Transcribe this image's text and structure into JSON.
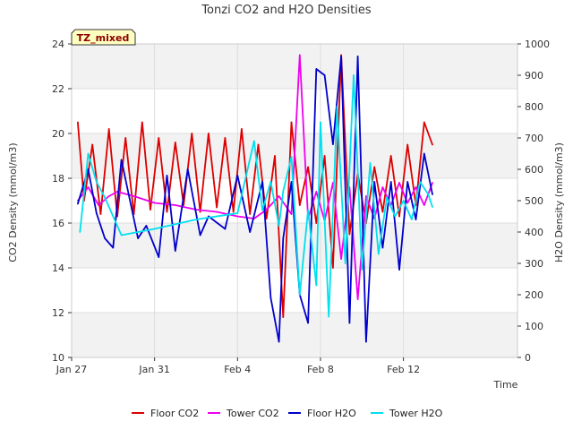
{
  "chart_data": {
    "type": "line",
    "title": "Tonzi CO2 and H2O Densities",
    "badge": "TZ_mixed",
    "xlabel": "Time",
    "ylabel_left": "CO2 Density (mmol/m3)",
    "ylabel_right": "H2O Density (mmol/m3)",
    "x_range_days": [
      0,
      21.5
    ],
    "x_ticks": [
      {
        "day": 0,
        "label": "Jan 27"
      },
      {
        "day": 4,
        "label": "Jan 31"
      },
      {
        "day": 8,
        "label": "Feb 4"
      },
      {
        "day": 12,
        "label": "Feb 8"
      },
      {
        "day": 16,
        "label": "Feb 12"
      }
    ],
    "ylim_left": [
      10,
      24
    ],
    "yticks_left": [
      10,
      12,
      14,
      16,
      18,
      20,
      22,
      24
    ],
    "ylim_right": [
      0,
      1000
    ],
    "yticks_right": [
      0,
      100,
      200,
      300,
      400,
      500,
      600,
      700,
      800,
      900,
      1000
    ],
    "series": [
      {
        "name": "Floor CO2",
        "axis": "left",
        "color": "#dd0000",
        "x": [
          0.3,
          0.6,
          1.0,
          1.4,
          1.8,
          2.2,
          2.6,
          3.0,
          3.4,
          3.8,
          4.2,
          4.6,
          5.0,
          5.4,
          5.8,
          6.2,
          6.6,
          7.0,
          7.4,
          7.8,
          8.2,
          8.6,
          9.0,
          9.4,
          9.8,
          10.2,
          10.6,
          11.0,
          11.4,
          11.8,
          12.2,
          12.6,
          13.0,
          13.4,
          13.8,
          14.2,
          14.6,
          15.0,
          15.4,
          15.8,
          16.2,
          16.6,
          17.0,
          17.4
        ],
        "values": [
          20.5,
          17.0,
          19.5,
          16.4,
          20.2,
          16.3,
          19.8,
          16.4,
          20.5,
          16.6,
          19.8,
          16.5,
          19.6,
          16.8,
          20.0,
          16.5,
          20.0,
          16.7,
          19.8,
          16.5,
          20.2,
          16.4,
          19.5,
          16.2,
          19.0,
          11.8,
          20.5,
          16.8,
          18.5,
          16.0,
          19.0,
          14.0,
          23.5,
          15.5,
          18.2,
          16.0,
          18.5,
          16.5,
          19.0,
          16.3,
          19.5,
          16.8,
          20.5,
          19.5
        ]
      },
      {
        "name": "Tower CO2",
        "axis": "left",
        "color": "#ee00ee",
        "x": [
          0.3,
          0.8,
          1.3,
          1.8,
          2.2,
          3.0,
          4.0,
          5.0,
          6.0,
          7.0,
          8.0,
          8.8,
          9.4,
          10.0,
          10.6,
          11.0,
          11.4,
          11.8,
          12.2,
          12.6,
          13.0,
          13.4,
          13.8,
          14.2,
          14.6,
          15.0,
          15.4,
          15.8,
          16.2,
          16.6,
          17.0,
          17.4
        ],
        "values": [
          17.0,
          17.6,
          16.8,
          17.2,
          17.4,
          17.2,
          16.9,
          16.8,
          16.6,
          16.5,
          16.3,
          16.2,
          16.6,
          17.2,
          16.4,
          23.5,
          16.2,
          17.4,
          16.1,
          17.8,
          14.4,
          17.6,
          12.6,
          17.2,
          16.2,
          17.6,
          16.8,
          17.8,
          16.9,
          17.6,
          16.8,
          17.8
        ]
      },
      {
        "name": "Floor H2O",
        "axis": "right",
        "color": "#0000cc",
        "x": [
          0.3,
          0.8,
          1.2,
          1.6,
          2.0,
          2.4,
          3.2,
          3.6,
          4.2,
          4.6,
          5.0,
          5.6,
          6.2,
          6.6,
          7.4,
          8.0,
          8.6,
          9.2,
          9.6,
          10.0,
          10.2,
          10.6,
          11.0,
          11.4,
          11.8,
          12.2,
          12.6,
          13.0,
          13.4,
          13.8,
          14.2,
          14.6,
          15.0,
          15.4,
          15.8,
          16.2,
          16.6,
          17.0,
          17.4
        ],
        "values": [
          490,
          600,
          460,
          380,
          350,
          630,
          380,
          420,
          320,
          580,
          340,
          600,
          390,
          450,
          410,
          580,
          400,
          560,
          190,
          50,
          380,
          560,
          200,
          110,
          920,
          900,
          680,
          960,
          110,
          960,
          50,
          560,
          350,
          560,
          280,
          560,
          440,
          650,
          520
        ]
      },
      {
        "name": "Tower H2O",
        "axis": "right",
        "color": "#00e0ee",
        "x": [
          0.4,
          0.8,
          1.2,
          1.6,
          2.4,
          4.0,
          6.0,
          8.0,
          8.8,
          9.2,
          9.6,
          10.0,
          10.2,
          10.6,
          11.0,
          11.4,
          11.8,
          12.0,
          12.4,
          12.8,
          13.2,
          13.6,
          14.0,
          14.4,
          14.8,
          15.2,
          15.6,
          16.0,
          16.4,
          16.8,
          17.2,
          17.4
        ],
        "values": [
          400,
          650,
          560,
          510,
          390,
          410,
          440,
          460,
          690,
          470,
          560,
          420,
          530,
          640,
          200,
          470,
          230,
          750,
          130,
          800,
          300,
          900,
          280,
          620,
          330,
          510,
          450,
          500,
          440,
          560,
          520,
          480
        ]
      }
    ],
    "legend": [
      "Floor CO2",
      "Tower CO2",
      "Floor H2O",
      "Tower H2O"
    ]
  }
}
